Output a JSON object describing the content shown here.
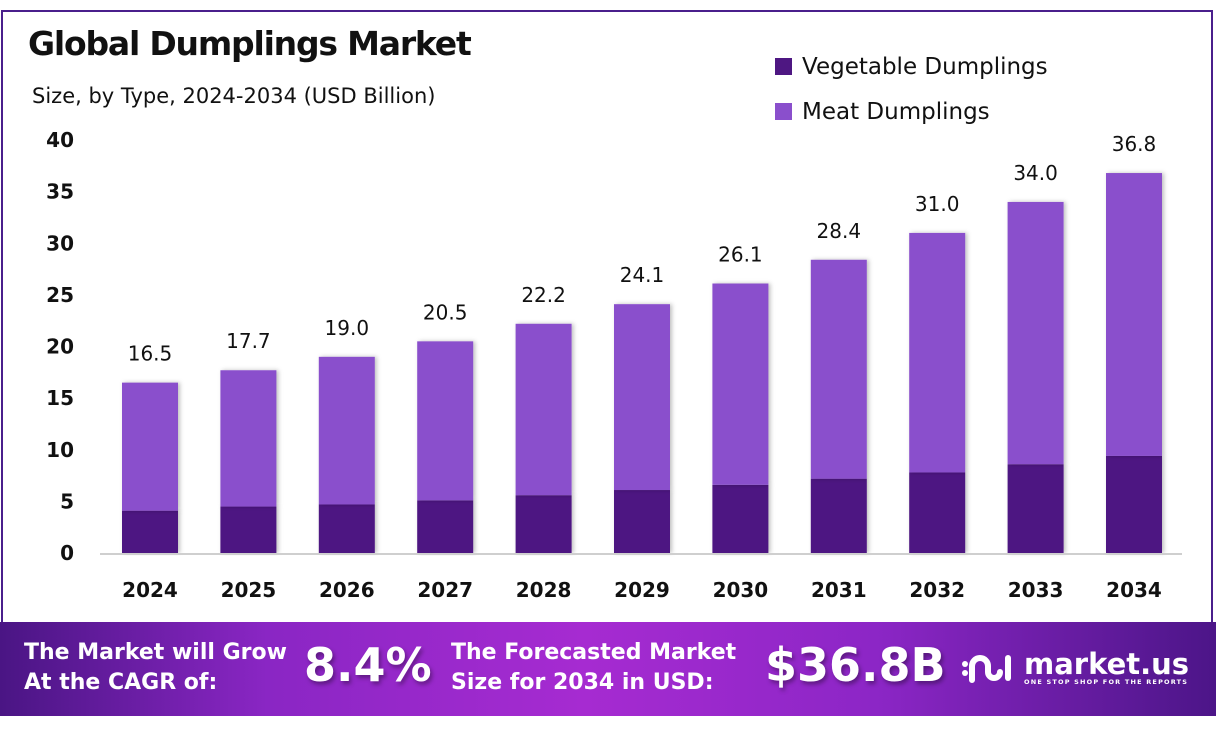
{
  "header": {
    "title": "Global Dumplings Market",
    "subtitle": "Size, by Type, 2024-2034 (USD Billion)"
  },
  "legend": [
    {
      "label": "Vegetable Dumplings",
      "color": "#4e1782"
    },
    {
      "label": "Meat Dumplings",
      "color": "#8a4fcc"
    }
  ],
  "chart_data": {
    "type": "bar",
    "stacked": true,
    "title": "Global Dumplings Market",
    "subtitle": "Size, by Type, 2024-2034 (USD Billion)",
    "xlabel": "",
    "ylabel": "",
    "ylim": [
      0,
      40
    ],
    "yticks": [
      0,
      5,
      10,
      15,
      20,
      25,
      30,
      35,
      40
    ],
    "grid": false,
    "legend_position": "top-right",
    "categories": [
      "2024",
      "2025",
      "2026",
      "2027",
      "2028",
      "2029",
      "2030",
      "2031",
      "2032",
      "2033",
      "2034"
    ],
    "series": [
      {
        "name": "Vegetable Dumplings",
        "color": "#4e1782",
        "values": [
          4.1,
          4.5,
          4.7,
          5.1,
          5.6,
          6.1,
          6.6,
          7.2,
          7.8,
          8.6,
          9.4
        ]
      },
      {
        "name": "Meat Dumplings",
        "color": "#8a4fcc",
        "values": [
          12.4,
          13.2,
          14.3,
          15.4,
          16.6,
          18.0,
          19.5,
          21.2,
          23.2,
          25.4,
          27.4
        ]
      }
    ],
    "totals": [
      16.5,
      17.7,
      19.0,
      20.5,
      22.2,
      24.1,
      26.1,
      28.4,
      31.0,
      34.0,
      36.8
    ],
    "total_labels": [
      "16.5",
      "17.7",
      "19.0",
      "20.5",
      "22.2",
      "24.1",
      "26.1",
      "28.4",
      "31.0",
      "34.0",
      "36.8"
    ]
  },
  "banner": {
    "cagr_text_line1": "The Market will Grow",
    "cagr_text_line2": "At the CAGR of:",
    "cagr_value": "8.4%",
    "forecast_text_line1": "The Forecasted Market",
    "forecast_text_line2": "Size for 2034 in USD:",
    "forecast_value": "$36.8B",
    "logo_name": "market.us",
    "logo_tagline": "ONE STOP SHOP FOR THE REPORTS"
  }
}
